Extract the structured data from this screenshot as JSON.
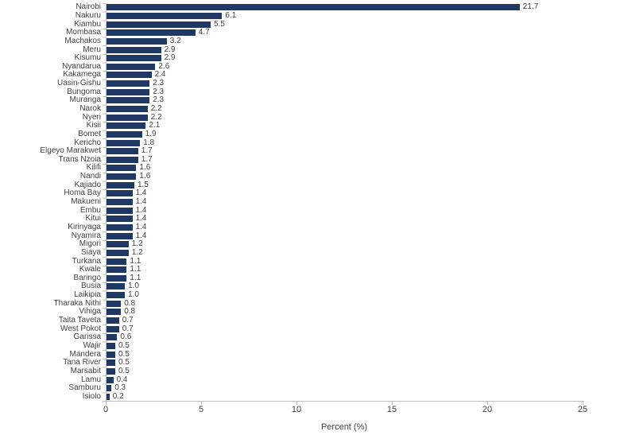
{
  "chart_data": {
    "type": "bar",
    "orientation": "horizontal",
    "title": "",
    "xlabel": "Percent (%)",
    "ylabel": "",
    "xlim": [
      0,
      25
    ],
    "x_ticks": [
      "0",
      "5",
      "10",
      "15",
      "20",
      "25"
    ],
    "grid": false,
    "legend": false,
    "bar_color": "#203864",
    "text_color": "#404040",
    "axis_color": "#bfbfbf",
    "categories": [
      "Nairobi",
      "Nakuru",
      "Kiambu",
      "Mombasa",
      "Machakos",
      "Meru",
      "Kisumu",
      "Nyandarua",
      "Kakamega",
      "Uasin-Gishu",
      "Bungoma",
      "Muranga",
      "Narok",
      "Nyeri",
      "Kisii",
      "Bomet",
      "Kericho",
      "Elgeyo Marakwet",
      "Trans Nzoia",
      "Kilifi",
      "Nandi",
      "Kajiado",
      "Homa Bay",
      "Makueni",
      "Embu",
      "Kitui",
      "Kirinyaga",
      "Nyamira",
      "Migori",
      "Siaya",
      "Turkana",
      "Kwale",
      "Baringo",
      "Busia",
      "Laikipia",
      "Tharaka Nithi",
      "Vihiga",
      "Taita Taveta",
      "West Pokot",
      "Garissa",
      "Wajir",
      "Mandera",
      "Tana River",
      "Marsabit",
      "Lamu",
      "Samburu",
      "Isiolo"
    ],
    "values": [
      21.7,
      6.1,
      5.5,
      4.7,
      3.2,
      2.9,
      2.9,
      2.6,
      2.4,
      2.3,
      2.3,
      2.3,
      2.2,
      2.2,
      2.1,
      1.9,
      1.8,
      1.7,
      1.7,
      1.6,
      1.6,
      1.5,
      1.4,
      1.4,
      1.4,
      1.4,
      1.4,
      1.4,
      1.2,
      1.2,
      1.1,
      1.1,
      1.1,
      1.0,
      1.0,
      0.8,
      0.8,
      0.7,
      0.7,
      0.6,
      0.5,
      0.5,
      0.5,
      0.5,
      0.4,
      0.3,
      0.2
    ],
    "data_labels": [
      "21.7",
      "6.1",
      "5.5",
      "4.7",
      "3.2",
      "2.9",
      "2.9",
      "2.6",
      "2.4",
      "2.3",
      "2.3",
      "2.3",
      "2.2",
      "2.2",
      "2.1",
      "1.9",
      "1.8",
      "1.7",
      "1.7",
      "1.6",
      "1.6",
      "1.5",
      "1.4",
      "1.4",
      "1.4",
      "1.4",
      "1.4",
      "1.4",
      "1.2",
      "1.2",
      "1.1",
      "1.1",
      "1.1",
      "1.0",
      "1.0",
      "0.8",
      "0.8",
      "0.7",
      "0.7",
      "0.6",
      "0.5",
      "0.5",
      "0.5",
      "0.5",
      "0.4",
      "0.3",
      "0.2"
    ]
  }
}
